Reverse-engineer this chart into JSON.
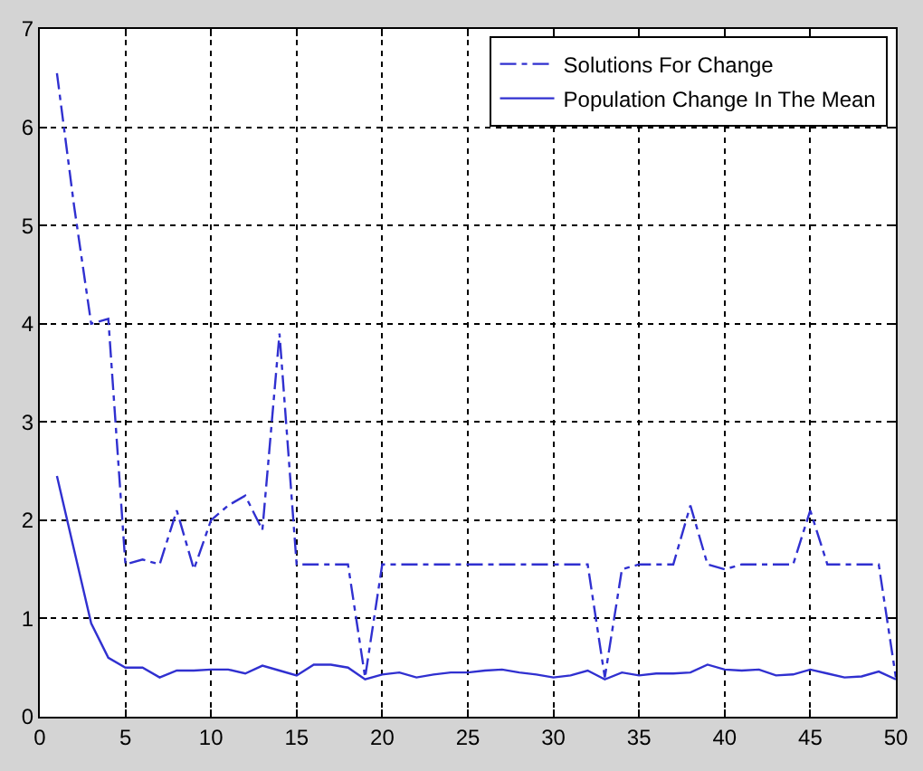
{
  "chart_data": {
    "type": "line",
    "x": [
      1,
      2,
      3,
      4,
      5,
      6,
      7,
      8,
      9,
      10,
      11,
      12,
      13,
      14,
      15,
      16,
      17,
      18,
      19,
      20,
      21,
      22,
      23,
      24,
      25,
      26,
      27,
      28,
      29,
      30,
      31,
      32,
      33,
      34,
      35,
      36,
      37,
      38,
      39,
      40,
      41,
      42,
      43,
      44,
      45,
      46,
      47,
      48,
      49,
      50
    ],
    "series": [
      {
        "name": "Solutions For Change",
        "color": "#3030d0",
        "line_style": "dashed",
        "values": [
          6.55,
          5.2,
          4.0,
          4.05,
          1.55,
          1.6,
          1.55,
          2.1,
          1.5,
          2.0,
          2.15,
          2.25,
          1.9,
          3.9,
          1.55,
          1.55,
          1.55,
          1.55,
          0.4,
          1.55,
          1.55,
          1.55,
          1.55,
          1.55,
          1.55,
          1.55,
          1.55,
          1.55,
          1.55,
          1.55,
          1.55,
          1.55,
          0.4,
          1.5,
          1.55,
          1.55,
          1.55,
          2.15,
          1.55,
          1.5,
          1.55,
          1.55,
          1.55,
          1.55,
          2.1,
          1.55,
          1.55,
          1.55,
          1.55,
          0.4
        ]
      },
      {
        "name": "Population Change In The Mean",
        "color": "#3030d0",
        "line_style": "solid",
        "values": [
          2.45,
          1.7,
          0.95,
          0.6,
          0.5,
          0.5,
          0.4,
          0.47,
          0.47,
          0.48,
          0.48,
          0.44,
          0.52,
          0.47,
          0.42,
          0.53,
          0.53,
          0.5,
          0.38,
          0.43,
          0.45,
          0.4,
          0.43,
          0.45,
          0.45,
          0.47,
          0.48,
          0.45,
          0.43,
          0.4,
          0.42,
          0.47,
          0.38,
          0.45,
          0.42,
          0.44,
          0.44,
          0.45,
          0.53,
          0.48,
          0.47,
          0.48,
          0.42,
          0.43,
          0.48,
          0.44,
          0.4,
          0.41,
          0.46,
          0.38
        ]
      }
    ],
    "xlim": [
      0,
      50
    ],
    "xticks": [
      0,
      5,
      10,
      15,
      20,
      25,
      30,
      35,
      40,
      45,
      50
    ],
    "ylim": [
      0,
      7
    ],
    "yticks": [
      0,
      1,
      2,
      3,
      4,
      5,
      6,
      7
    ],
    "grid": true,
    "legend": "top right",
    "marker": "none"
  }
}
